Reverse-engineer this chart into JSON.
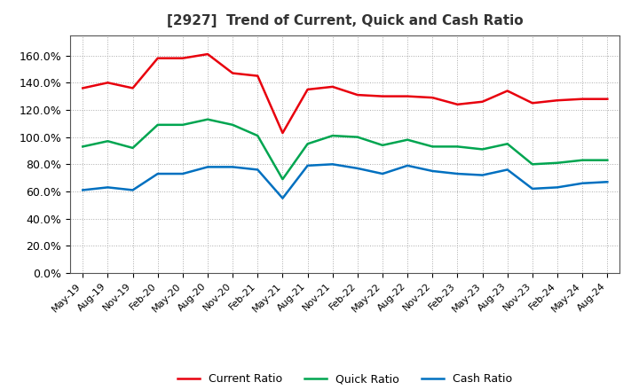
{
  "title": "[2927]  Trend of Current, Quick and Cash Ratio",
  "x_labels": [
    "May-19",
    "Aug-19",
    "Nov-19",
    "Feb-20",
    "May-20",
    "Aug-20",
    "Nov-20",
    "Feb-21",
    "May-21",
    "Aug-21",
    "Nov-21",
    "Feb-22",
    "May-22",
    "Aug-22",
    "Nov-22",
    "Feb-23",
    "May-23",
    "Aug-23",
    "Nov-23",
    "Feb-24",
    "May-24",
    "Aug-24"
  ],
  "current_ratio": [
    136,
    140,
    136,
    158,
    158,
    161,
    147,
    145,
    103,
    135,
    137,
    131,
    130,
    130,
    129,
    124,
    126,
    134,
    125,
    127,
    128,
    128
  ],
  "quick_ratio": [
    93,
    97,
    92,
    109,
    109,
    113,
    109,
    101,
    69,
    95,
    101,
    100,
    94,
    98,
    93,
    93,
    91,
    95,
    80,
    81,
    83,
    83
  ],
  "cash_ratio": [
    61,
    63,
    61,
    73,
    73,
    78,
    78,
    76,
    55,
    79,
    80,
    77,
    73,
    79,
    75,
    73,
    72,
    76,
    62,
    63,
    66,
    67
  ],
  "current_color": "#e8000d",
  "quick_color": "#00a550",
  "cash_color": "#0070c0",
  "background_color": "#ffffff",
  "grid_color": "#aaaaaa",
  "ylim": [
    0,
    175
  ],
  "yticks": [
    0,
    20,
    40,
    60,
    80,
    100,
    120,
    140,
    160
  ],
  "legend_labels": [
    "Current Ratio",
    "Quick Ratio",
    "Cash Ratio"
  ]
}
